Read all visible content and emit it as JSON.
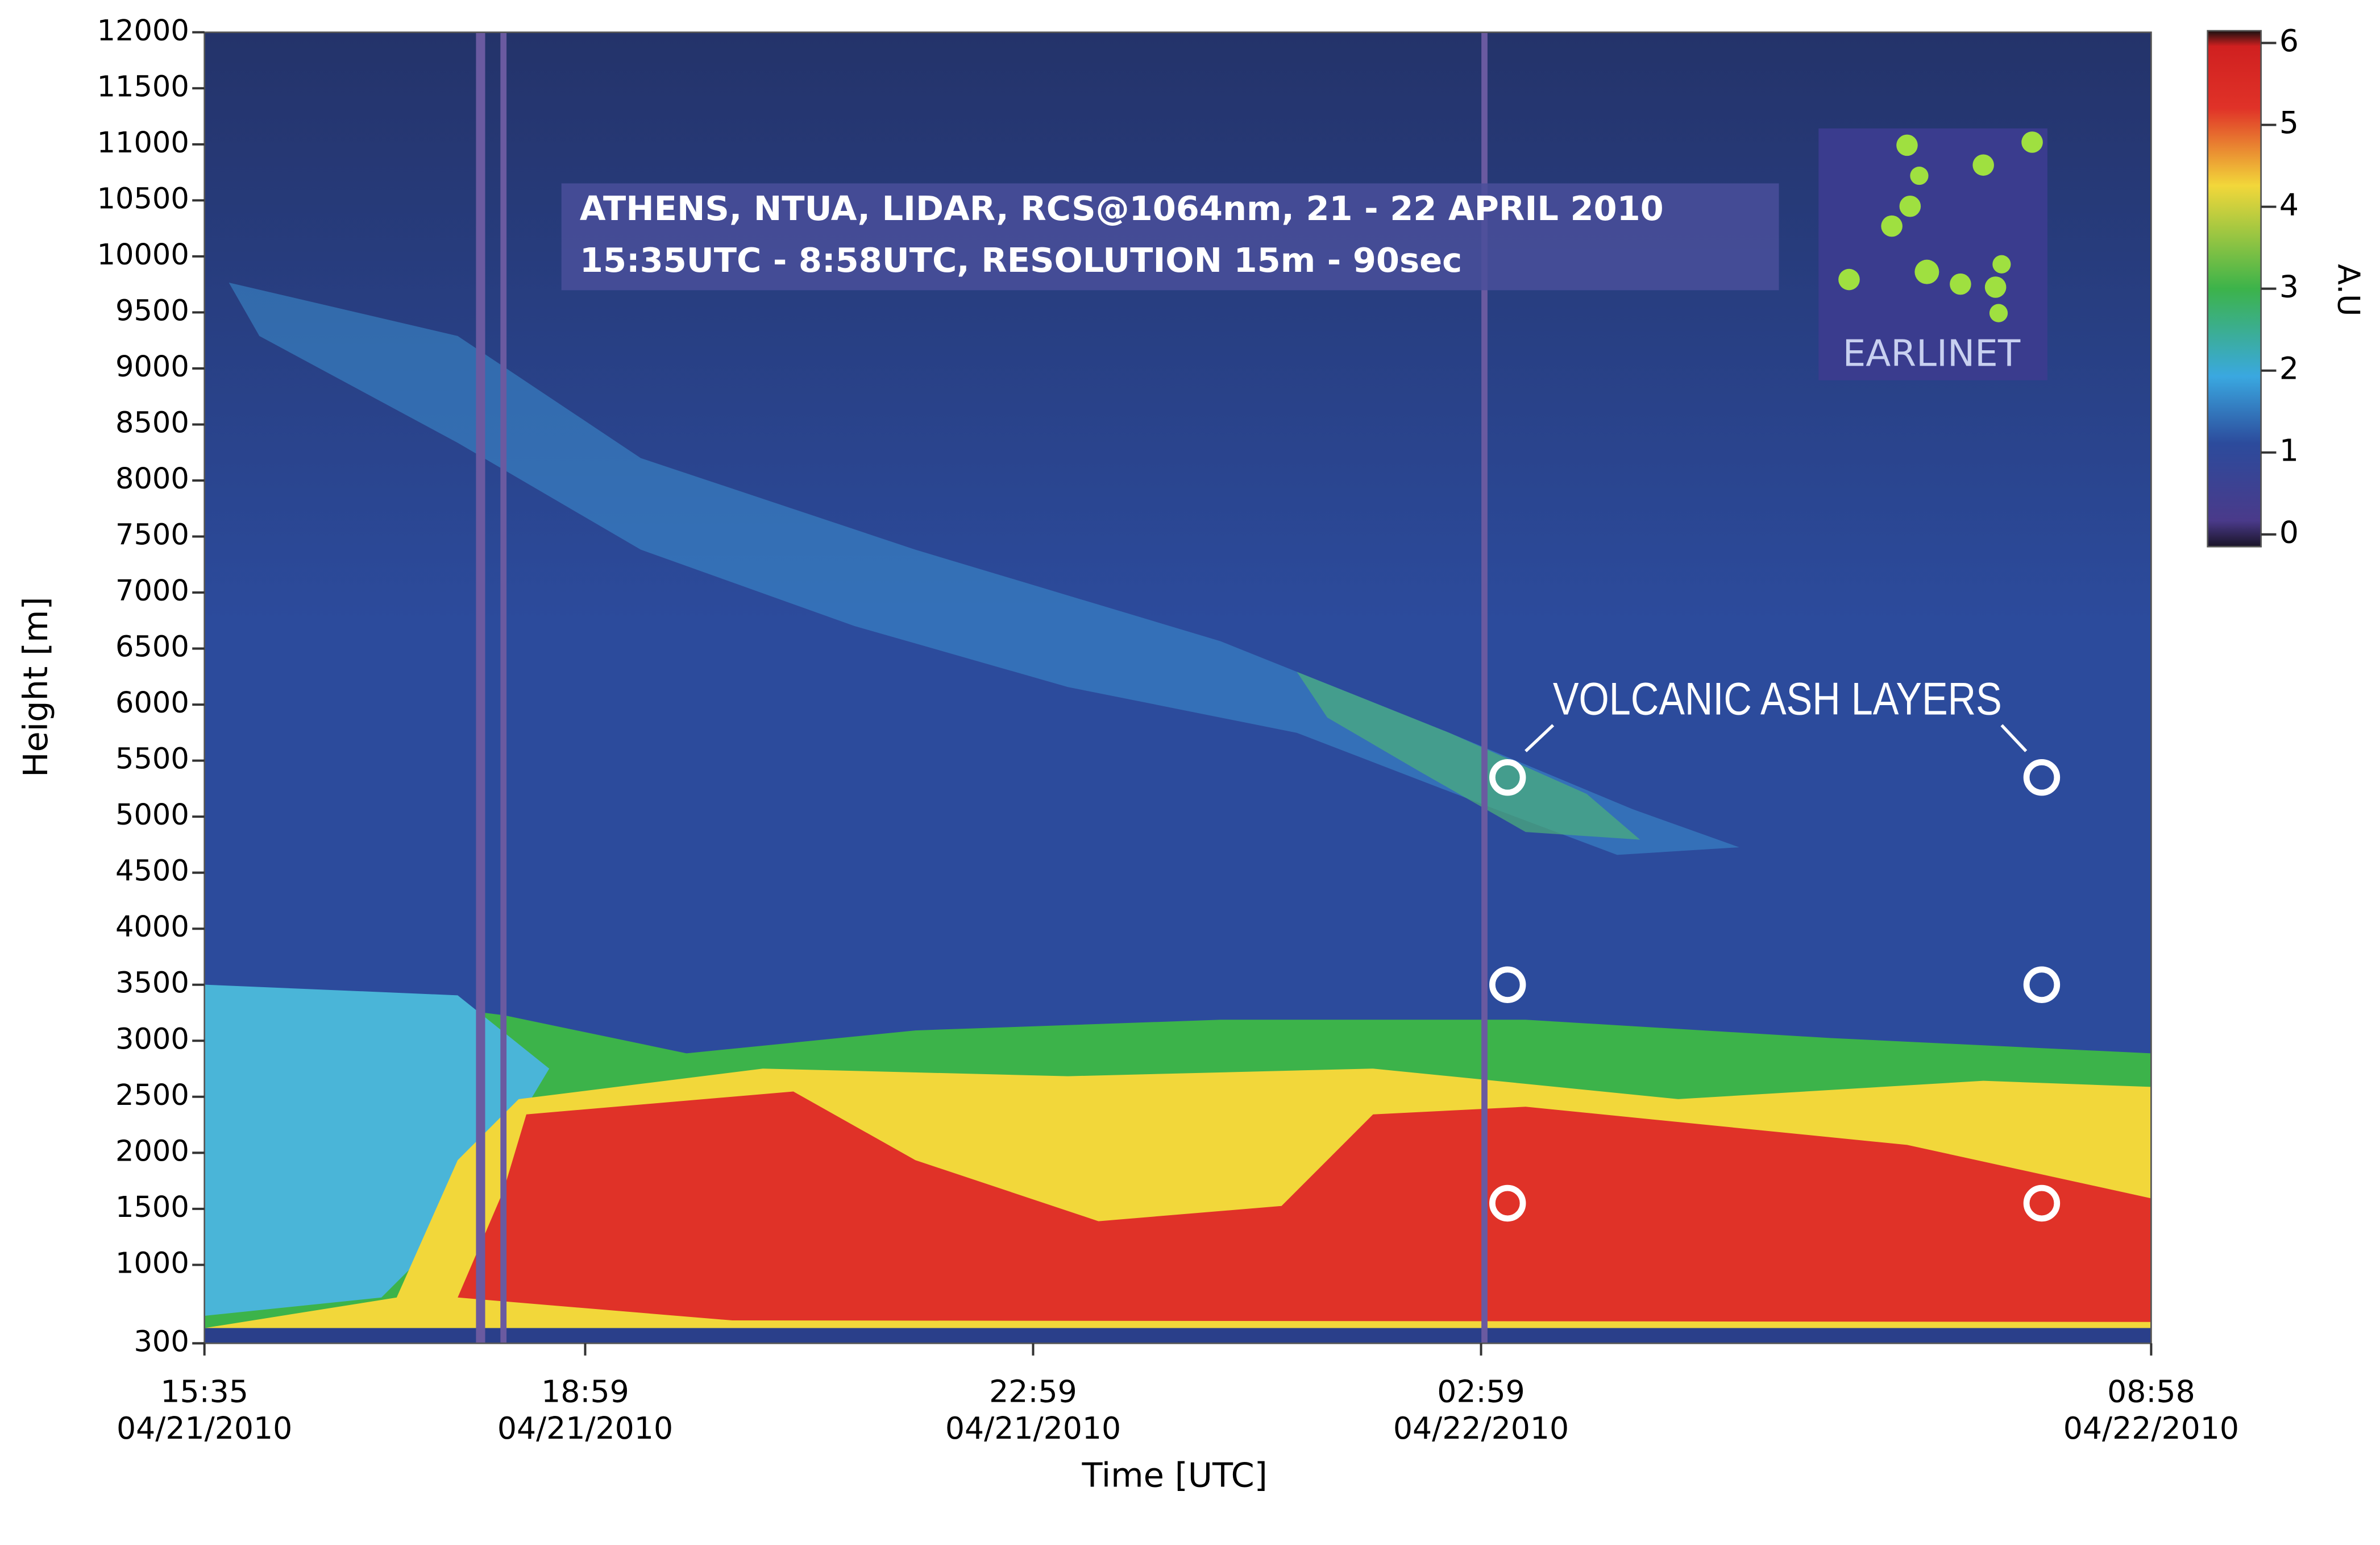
{
  "chart_data": {
    "type": "heatmap",
    "title": "ATHENS, NTUA, LIDAR, RCS@1064nm, 21 - 22 APRIL 2010",
    "subtitle": "15:35UTC - 8:58UTC, RESOLUTION 15m - 90sec",
    "x_label": "Time [UTC]",
    "y_label": "Height [m]",
    "xlim": [
      15.583,
      32.967
    ],
    "xticks": [
      {
        "value": 15.583,
        "label": "15:35",
        "date": "04/21/2010"
      },
      {
        "value": 18.983,
        "label": "18:59",
        "date": "04/21/2010"
      },
      {
        "value": 22.983,
        "label": "22:59",
        "date": "04/21/2010"
      },
      {
        "value": 26.983,
        "label": "02:59",
        "date": "04/22/2010"
      },
      {
        "value": 32.967,
        "label": "08:58",
        "date": "04/22/2010"
      }
    ],
    "ylim": [
      300,
      12000
    ],
    "yticks": [
      300,
      1000,
      1500,
      2000,
      2500,
      3000,
      3500,
      4000,
      4500,
      5000,
      5500,
      6000,
      6500,
      7000,
      7500,
      8000,
      8500,
      9000,
      9500,
      10000,
      10500,
      11000,
      11500,
      12000
    ],
    "colorbar": {
      "label": "A.U",
      "lim": [
        0,
        6
      ],
      "ticks": [
        0,
        1,
        2,
        3,
        4,
        5,
        6
      ],
      "colors": [
        "#2a1e3a",
        "#2c4b9c",
        "#3aa8e0",
        "#3cb34a",
        "#f2d73a",
        "#e03228"
      ]
    },
    "annotation": "VOLCANIC ASH LAYERS",
    "markers": {
      "x": [
        27.22,
        27.22,
        27.22,
        31.99,
        31.99,
        31.99
      ],
      "y": [
        5350,
        3500,
        1550,
        5350,
        3500,
        1550
      ]
    },
    "logo": "EARLINET"
  }
}
